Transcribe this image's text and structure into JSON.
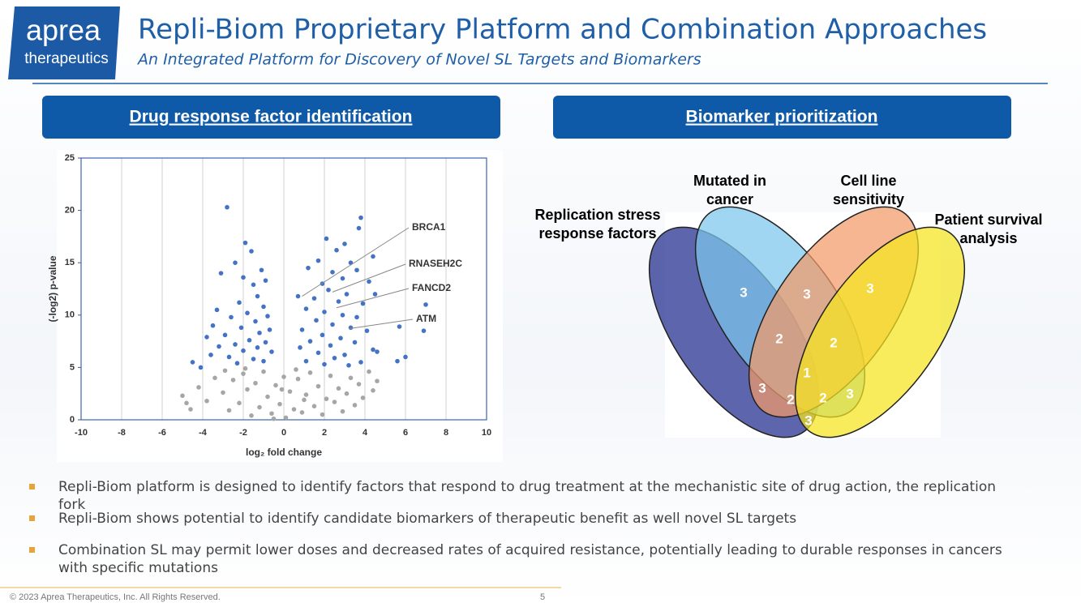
{
  "header": {
    "logo_top": "aprea",
    "logo_bottom": "therapeutics",
    "title": "Repli-Biom Proprietary Platform and Combination Approaches",
    "subtitle": "An Integrated Platform for Discovery of Novel SL Targets and Biomarkers"
  },
  "panels": [
    {
      "heading": "Drug response factor identification"
    },
    {
      "heading": "Biomarker prioritization"
    }
  ],
  "chart_data": {
    "type": "scatter",
    "xlabel": "log₂ fold change",
    "ylabel": "(-log2) p-value",
    "xlim": [
      -10,
      10
    ],
    "xticks": [
      -10,
      -8,
      -6,
      -4,
      -2,
      0,
      2,
      4,
      6,
      8,
      10
    ],
    "ylim": [
      0,
      25
    ],
    "yticks": [
      0,
      5,
      10,
      15,
      20,
      25
    ],
    "grid": true,
    "series": [
      {
        "color": "#4472c4",
        "x": [
          -2.8,
          -1.9,
          -1.6,
          -2.4,
          -1.1,
          -3.1,
          -2.0,
          -1.5,
          -0.9,
          -1.3,
          -2.2,
          -1.0,
          -3.3,
          -1.8,
          -0.8,
          -2.6,
          -1.4,
          -3.5,
          -2.1,
          -0.7,
          -1.2,
          -2.9,
          -3.8,
          -1.7,
          -0.9,
          -2.4,
          -3.2,
          -1.3,
          -2.0,
          -0.6,
          -4.5,
          -3.6,
          -2.7,
          -1.5,
          -1.0,
          -4.1,
          -2.3,
          3.8,
          3.7,
          2.1,
          3.0,
          4.4,
          2.6,
          1.7,
          3.3,
          2.4,
          1.2,
          3.6,
          2.9,
          1.9,
          4.2,
          2.2,
          3.1,
          1.5,
          0.7,
          2.7,
          3.9,
          4.5,
          1.1,
          2.0,
          2.9,
          3.6,
          1.6,
          2.4,
          3.3,
          0.9,
          4.1,
          1.9,
          2.8,
          1.3,
          3.5,
          2.3,
          0.8,
          4.4,
          1.7,
          3.0,
          2.5,
          1.1,
          3.8,
          7.0,
          6.9,
          5.7,
          6.0,
          5.6,
          4.6,
          2.0,
          3.2
        ],
        "values": [
          20.3,
          16.9,
          16.1,
          15.0,
          14.3,
          14.0,
          13.6,
          12.9,
          13.3,
          11.8,
          11.2,
          10.8,
          10.5,
          10.2,
          9.9,
          9.8,
          9.4,
          9.0,
          8.8,
          8.6,
          8.3,
          8.1,
          7.9,
          7.6,
          7.4,
          7.2,
          7.0,
          6.9,
          6.6,
          6.5,
          5.5,
          6.2,
          6.0,
          5.8,
          5.6,
          5.0,
          5.4,
          19.3,
          18.3,
          17.3,
          16.8,
          15.6,
          16.2,
          15.2,
          15.0,
          14.1,
          14.5,
          14.3,
          13.5,
          13.0,
          13.2,
          12.4,
          12.0,
          11.6,
          11.8,
          11.3,
          11.1,
          12.0,
          10.6,
          10.3,
          10.0,
          9.8,
          9.5,
          9.1,
          8.8,
          8.6,
          8.5,
          8.1,
          7.8,
          7.5,
          7.4,
          7.1,
          6.9,
          6.7,
          6.4,
          6.2,
          5.9,
          5.6,
          5.5,
          11.0,
          8.5,
          8.9,
          6.0,
          5.6,
          6.5,
          5.3,
          5.2
        ]
      },
      {
        "color": "#a6a6a6",
        "x": [
          -5.0,
          -4.6,
          -4.2,
          -3.8,
          -3.4,
          -3.0,
          -2.7,
          -2.5,
          -2.2,
          -2.0,
          -1.8,
          -1.6,
          -1.4,
          -1.2,
          -1.0,
          -0.8,
          -0.6,
          -0.4,
          -0.2,
          0.0,
          0.1,
          0.3,
          0.5,
          0.7,
          0.9,
          1.1,
          1.3,
          1.5,
          1.7,
          1.9,
          2.1,
          2.3,
          2.5,
          2.7,
          2.9,
          3.1,
          3.3,
          3.5,
          3.7,
          3.9,
          4.2,
          4.4,
          4.6,
          -0.5,
          0.6,
          -1.9,
          1.0,
          -0.1,
          -2.9,
          -4.8
        ],
        "values": [
          2.3,
          1.0,
          3.1,
          1.8,
          4.0,
          2.6,
          0.9,
          3.8,
          1.6,
          4.4,
          2.9,
          0.4,
          3.5,
          1.2,
          4.6,
          2.2,
          0.6,
          3.3,
          1.5,
          4.1,
          0.2,
          2.7,
          1.0,
          3.9,
          0.7,
          2.4,
          4.5,
          1.3,
          3.2,
          0.5,
          2.0,
          4.2,
          1.7,
          3.0,
          0.8,
          2.5,
          4.0,
          1.4,
          3.4,
          2.1,
          4.6,
          2.8,
          3.7,
          0.1,
          4.8,
          4.9,
          1.9,
          2.9,
          4.7,
          1.6
        ]
      }
    ],
    "annotations": [
      {
        "text": "BRCA1",
        "x": 0.9,
        "y": 11.8
      },
      {
        "text": "RNASEH2C",
        "x": 2.4,
        "y": 12.2
      },
      {
        "text": "FANCD2",
        "x": 2.6,
        "y": 10.7
      },
      {
        "text": "ATM",
        "x": 3.2,
        "y": 8.7
      }
    ]
  },
  "venn": {
    "sets": [
      {
        "label": "Replication stress response factors",
        "color": "#1f2a8c"
      },
      {
        "label": "Mutated in cancer",
        "color": "#7cc6ec"
      },
      {
        "label": "Cell line sensitivity",
        "color": "#f39a68"
      },
      {
        "label": "Patient survival analysis",
        "color": "#f5e41e"
      }
    ],
    "regions": [
      "3",
      "3",
      "3",
      "2",
      "2",
      "1",
      "3",
      "2",
      "2",
      "3",
      "3"
    ]
  },
  "bullets": [
    "Repli-Biom platform is designed to identify factors that respond to drug treatment at the mechanistic site of drug action, the replication fork",
    "Repli-Biom shows potential to identify candidate biomarkers of therapeutic benefit as well novel SL targets",
    "Combination SL may permit lower doses and decreased rates of acquired resistance, potentially leading to durable responses in cancers with specific mutations"
  ],
  "footer": {
    "copyright": "© 2023 Aprea Therapeutics, Inc. All Rights Reserved.",
    "page": "5"
  }
}
